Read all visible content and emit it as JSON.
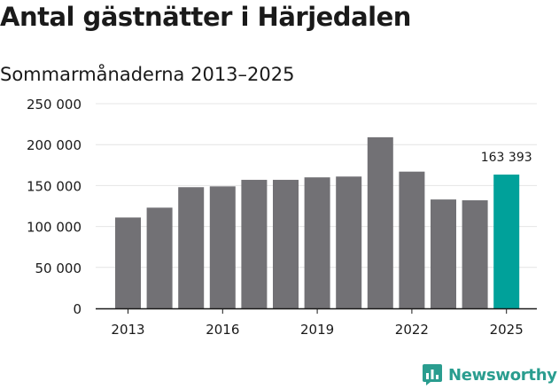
{
  "chart_data": {
    "type": "bar",
    "title": "Antal gästnätter i Härjedalen",
    "subtitle": "Sommarmånaderna 2013–2025",
    "categories": [
      2013,
      2014,
      2015,
      2016,
      2017,
      2018,
      2019,
      2020,
      2021,
      2022,
      2023,
      2024,
      2025
    ],
    "values": [
      111000,
      123000,
      148000,
      149000,
      157000,
      157000,
      160000,
      161000,
      209000,
      167000,
      133000,
      132000,
      163393
    ],
    "ylim": [
      0,
      250000
    ],
    "yticks": [
      {
        "value": 0,
        "label": "0"
      },
      {
        "value": 50000,
        "label": "50 000"
      },
      {
        "value": 100000,
        "label": "100 000"
      },
      {
        "value": 150000,
        "label": "150 000"
      },
      {
        "value": 200000,
        "label": "200 000"
      },
      {
        "value": 250000,
        "label": "250 000"
      }
    ],
    "xticks": [
      "2013",
      "2016",
      "2019",
      "2022",
      "2025"
    ],
    "highlight_index": 12,
    "highlight_label": "163 393",
    "grid": true,
    "colors": {
      "bar": "#727175",
      "highlight": "#00a19a",
      "grid": "#e4e4e4",
      "axis": "#1a1a1a"
    }
  },
  "brand": {
    "name": "Newsworthy",
    "icon": "newsworthy-logo-icon",
    "color": "#2a9d8f"
  }
}
